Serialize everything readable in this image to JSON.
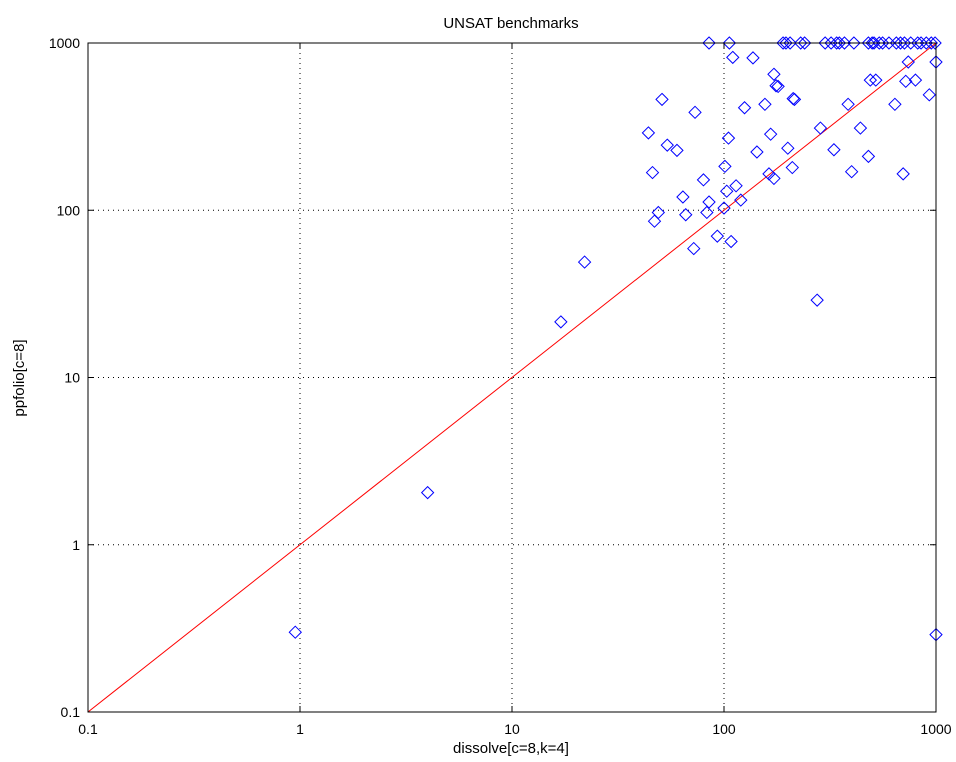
{
  "chart_data": {
    "type": "scatter",
    "title": "UNSAT benchmarks",
    "xlabel": "dissolve[c=8,k=4]",
    "ylabel": "ppfolio[c=8]",
    "xscale": "log",
    "yscale": "log",
    "xlim": [
      0.1,
      1000
    ],
    "ylim": [
      0.1,
      1000
    ],
    "xticks": [
      0.1,
      1,
      10,
      100,
      1000
    ],
    "yticks": [
      0.1,
      1,
      10,
      100,
      1000
    ],
    "xtick_labels": [
      "0.1",
      "1",
      "10",
      "100",
      "1000"
    ],
    "ytick_labels": [
      "0.1",
      "1",
      "10",
      "100",
      "1000"
    ],
    "grid": true,
    "marker_color": "#0000ff",
    "reference_line_color": "#ff0000",
    "reference_line": [
      [
        0.1,
        0.1
      ],
      [
        1000,
        1000
      ]
    ],
    "points": [
      [
        0.95,
        0.3
      ],
      [
        4.0,
        2.05
      ],
      [
        17,
        21.5
      ],
      [
        22,
        49
      ],
      [
        44,
        290
      ],
      [
        46,
        168
      ],
      [
        47,
        86
      ],
      [
        49,
        97
      ],
      [
        51,
        460
      ],
      [
        54,
        245
      ],
      [
        60,
        228
      ],
      [
        64,
        120
      ],
      [
        66,
        94
      ],
      [
        72,
        59
      ],
      [
        73,
        385
      ],
      [
        80,
        152
      ],
      [
        83,
        97
      ],
      [
        85,
        112
      ],
      [
        85,
        1000
      ],
      [
        93,
        70
      ],
      [
        100,
        103
      ],
      [
        101,
        183
      ],
      [
        103,
        130
      ],
      [
        105,
        270
      ],
      [
        106,
        1000
      ],
      [
        108,
        65
      ],
      [
        110,
        820
      ],
      [
        114,
        140
      ],
      [
        120,
        115
      ],
      [
        125,
        410
      ],
      [
        137,
        815
      ],
      [
        143,
        223
      ],
      [
        156,
        430
      ],
      [
        163,
        165
      ],
      [
        166,
        285
      ],
      [
        172,
        155
      ],
      [
        172,
        650
      ],
      [
        176,
        555
      ],
      [
        180,
        550
      ],
      [
        190,
        1000
      ],
      [
        196,
        1000
      ],
      [
        200,
        235
      ],
      [
        205,
        1000
      ],
      [
        210,
        180
      ],
      [
        212,
        465
      ],
      [
        215,
        460
      ],
      [
        230,
        1000
      ],
      [
        240,
        1000
      ],
      [
        275,
        29
      ],
      [
        285,
        310
      ],
      [
        300,
        1000
      ],
      [
        320,
        1000
      ],
      [
        330,
        230
      ],
      [
        340,
        1000
      ],
      [
        350,
        1000
      ],
      [
        370,
        1000
      ],
      [
        385,
        430
      ],
      [
        400,
        170
      ],
      [
        410,
        1000
      ],
      [
        440,
        310
      ],
      [
        480,
        210
      ],
      [
        480,
        1000
      ],
      [
        490,
        600
      ],
      [
        500,
        1000
      ],
      [
        510,
        1000
      ],
      [
        520,
        600
      ],
      [
        540,
        1000
      ],
      [
        560,
        1000
      ],
      [
        600,
        1000
      ],
      [
        640,
        430
      ],
      [
        650,
        1000
      ],
      [
        680,
        1000
      ],
      [
        700,
        165
      ],
      [
        710,
        1000
      ],
      [
        720,
        590
      ],
      [
        740,
        770
      ],
      [
        760,
        1000
      ],
      [
        800,
        600
      ],
      [
        820,
        1000
      ],
      [
        850,
        1000
      ],
      [
        900,
        1000
      ],
      [
        930,
        490
      ],
      [
        950,
        1000
      ],
      [
        990,
        1000
      ],
      [
        1000,
        770
      ],
      [
        1000,
        0.29
      ]
    ]
  }
}
